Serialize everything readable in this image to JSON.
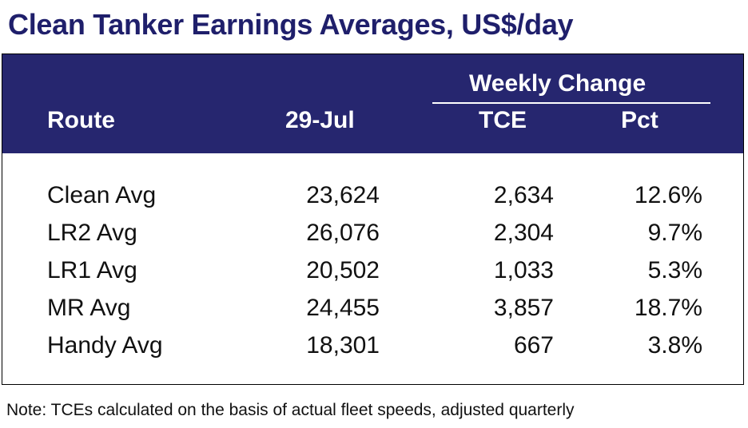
{
  "title": "Clean Tanker Earnings Averages, US$/day",
  "table": {
    "header": {
      "group_label": "Weekly Change",
      "col_route": "Route",
      "col_date": "29-Jul",
      "col_tce": "TCE",
      "col_pct": "Pct"
    },
    "rows": [
      {
        "route": "Clean Avg",
        "value": "23,624",
        "tce": "2,634",
        "pct": "12.6%"
      },
      {
        "route": "LR2 Avg",
        "value": "26,076",
        "tce": "2,304",
        "pct": "9.7%"
      },
      {
        "route": "LR1 Avg",
        "value": "20,502",
        "tce": "1,033",
        "pct": "5.3%"
      },
      {
        "route": "MR Avg",
        "value": "24,455",
        "tce": "3,857",
        "pct": "18.7%"
      },
      {
        "route": "Handy Avg",
        "value": "18,301",
        "tce": "667",
        "pct": "3.8%"
      }
    ]
  },
  "note": "Note: TCEs calculated on the basis of actual fleet speeds, adjusted quarterly",
  "colors": {
    "title": "#1f1f6b",
    "header_band": "#26266f",
    "header_text": "#ffffff"
  }
}
